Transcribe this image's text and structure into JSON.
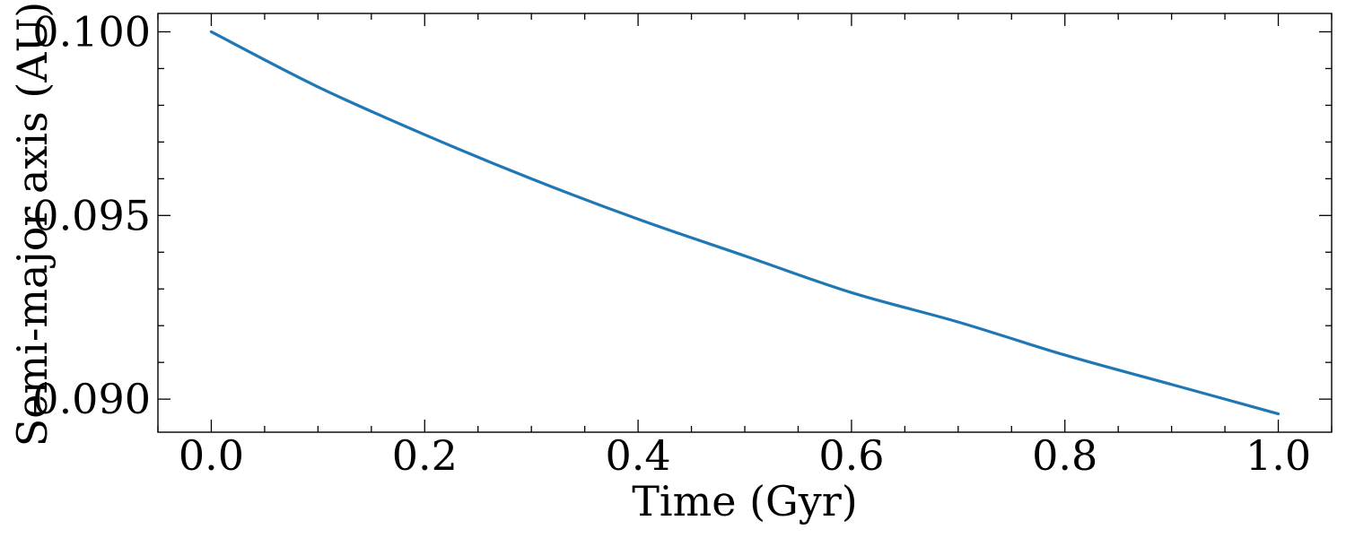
{
  "chart_data": {
    "type": "line",
    "title": "",
    "xlabel": "Time (Gyr)",
    "ylabel": "Semi-major axis (AU)",
    "xlim": [
      -0.05,
      1.05
    ],
    "ylim": [
      0.0891,
      0.1005
    ],
    "xticks": [
      0.0,
      0.2,
      0.4,
      0.6,
      0.8,
      1.0
    ],
    "xtick_labels": [
      "0.0",
      "0.2",
      "0.4",
      "0.6",
      "0.8",
      "1.0"
    ],
    "xminor_step": 0.05,
    "yticks": [
      0.09,
      0.095,
      0.1
    ],
    "ytick_labels": [
      "0.090",
      "0.095",
      "0.100"
    ],
    "yminor_step": 0.001,
    "tick_direction": "in",
    "ticks_on_all_sides": true,
    "grid": false,
    "series": [
      {
        "color": "#1f77b4",
        "x": [
          0.0,
          0.1,
          0.2,
          0.3,
          0.4,
          0.5,
          0.6,
          0.7,
          0.8,
          0.9,
          1.0
        ],
        "y": [
          0.1,
          0.0985,
          0.0972,
          0.096,
          0.0949,
          0.0939,
          0.0929,
          0.0921,
          0.0912,
          0.0904,
          0.0896
        ]
      }
    ]
  }
}
